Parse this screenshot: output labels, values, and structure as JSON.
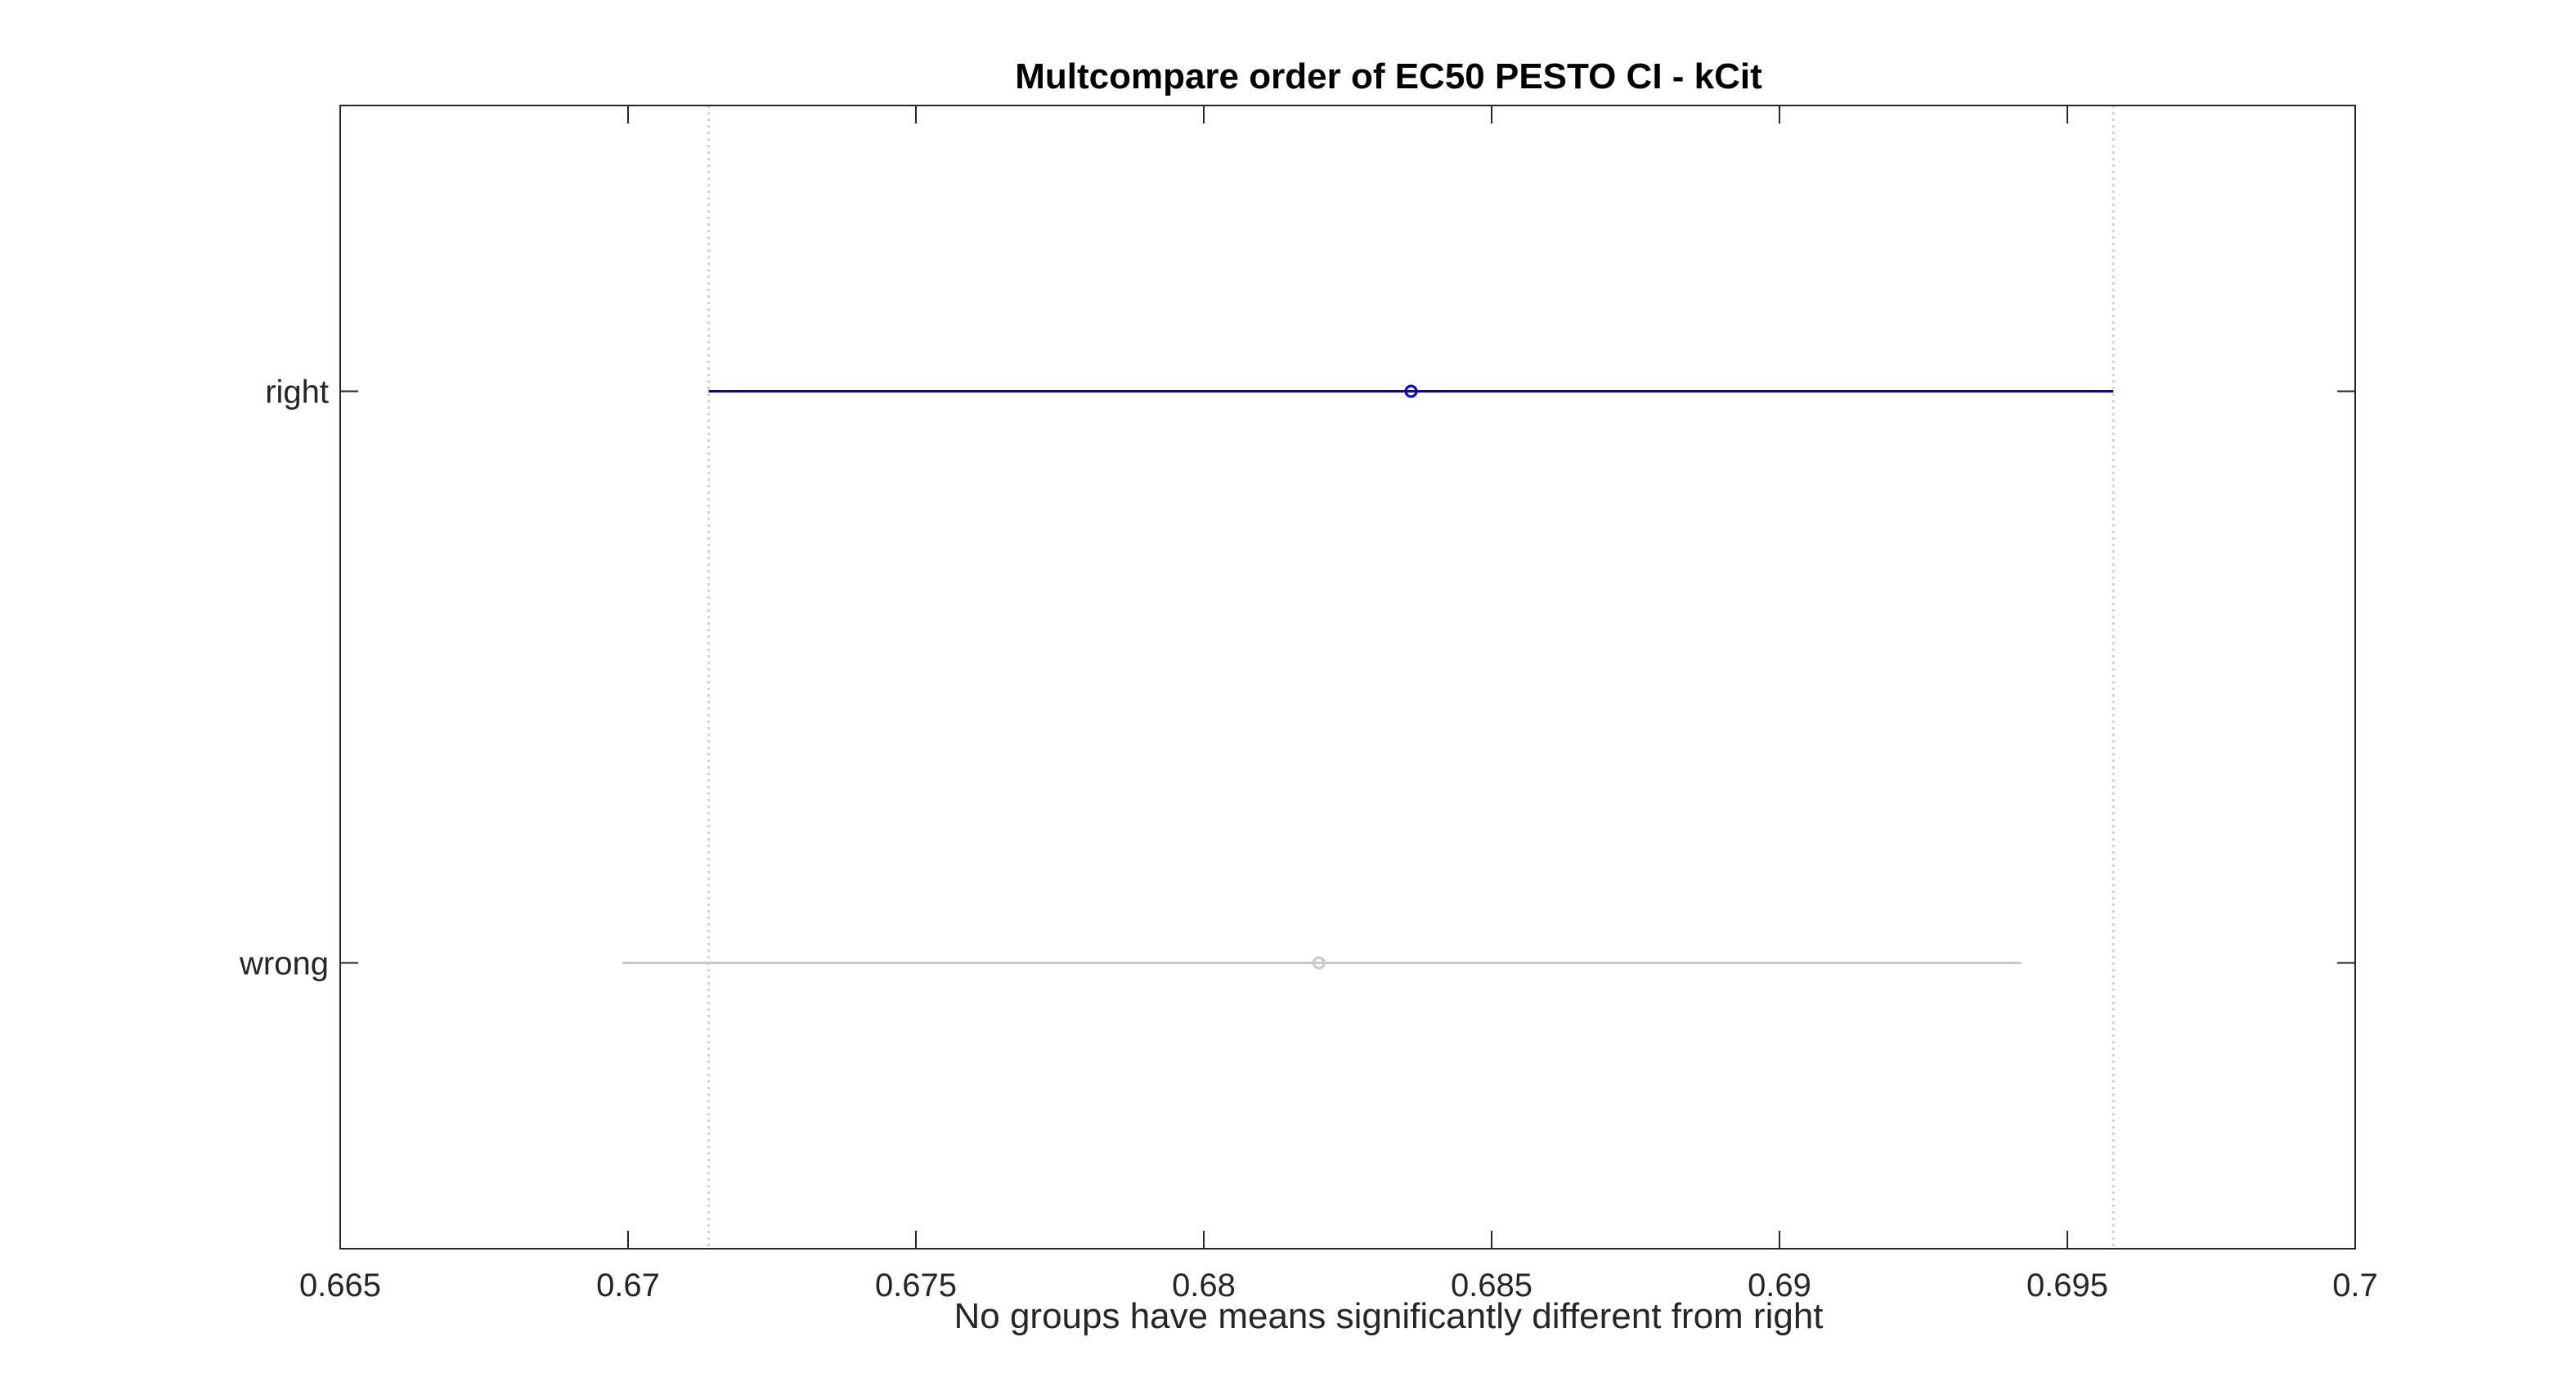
{
  "chart_data": {
    "type": "scatter",
    "subtype": "multcompare-interval",
    "title": "Multcompare order of EC50 PESTO CI - kCit",
    "xlabel": "No groups have means significantly different from right",
    "ylabel": "",
    "xlim": [
      0.665,
      0.7
    ],
    "xticks": [
      0.665,
      0.67,
      0.675,
      0.68,
      0.685,
      0.69,
      0.695,
      0.7
    ],
    "xtick_labels": [
      "0.665",
      "0.67",
      "0.675",
      "0.68",
      "0.685",
      "0.69",
      "0.695",
      "0.7"
    ],
    "categories": [
      "right",
      "wrong"
    ],
    "groups": [
      {
        "label": "right",
        "mean": 0.6836,
        "lower": 0.6714,
        "upper": 0.6958,
        "color": "#0000cc",
        "selected": true
      },
      {
        "label": "wrong",
        "mean": 0.682,
        "lower": 0.6699,
        "upper": 0.6942,
        "color": "#c8c8c8",
        "selected": false
      }
    ],
    "reference_lines": [
      0.6714,
      0.6958
    ],
    "reference_line_style": "dotted",
    "reference_line_color": "#c8c8c8",
    "axis_color": "#262626",
    "grid": false,
    "legend": "none"
  }
}
